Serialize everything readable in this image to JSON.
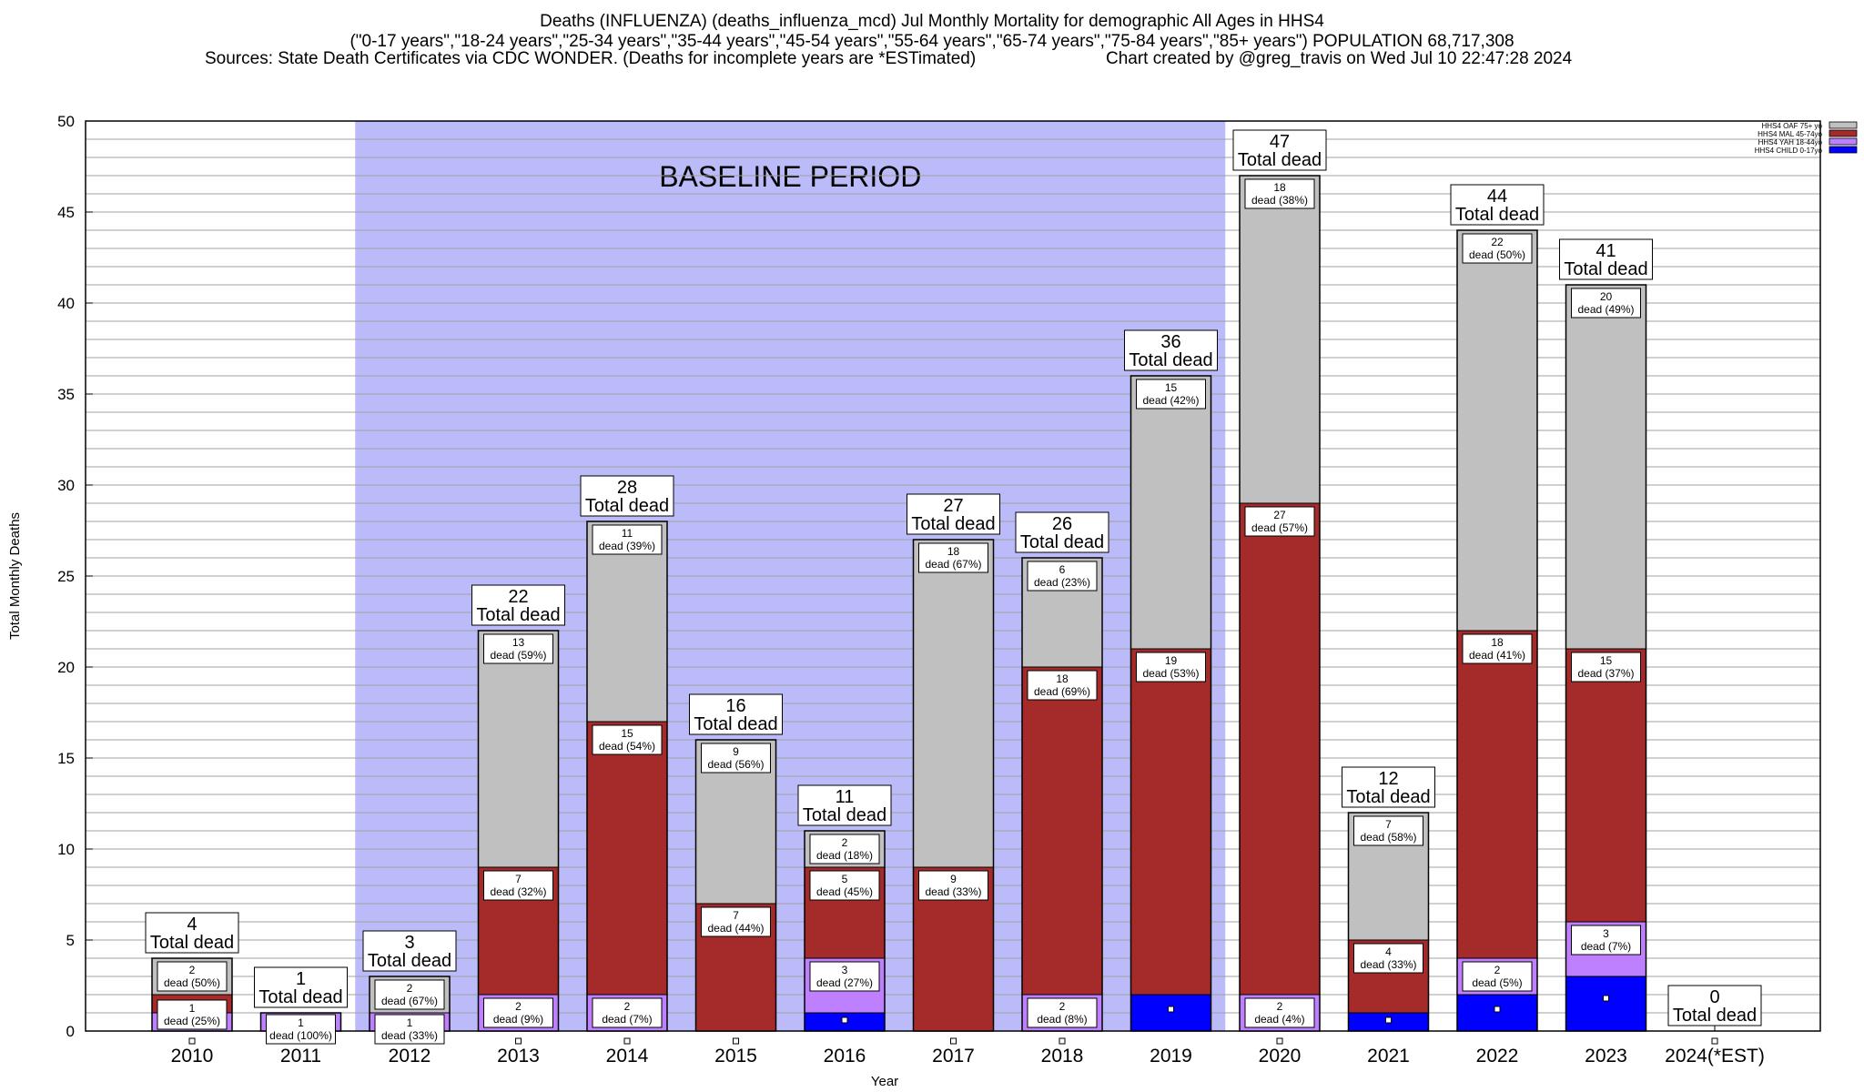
{
  "header": {
    "title": "Deaths (INFLUENZA) (deaths_influenza_mcd) Jul Monthly Mortality for demographic All Ages in HHS4",
    "groups_line": "(\"0-17 years\",\"18-24 years\",\"25-34 years\",\"35-44 years\",\"45-54 years\",\"55-64 years\",\"65-74 years\",\"75-84 years\",\"85+ years\") POPULATION 68,717,308",
    "sources": "Sources: State Death Certificates via CDC WONDER. (Deaths for incomplete years are *ESTimated)",
    "credit": "Chart created by @greg_travis on Wed Jul 10 22:47:28 2024"
  },
  "chart_data": {
    "type": "bar",
    "stacked": true,
    "xlabel": "Year",
    "ylabel": "Total Monthly Deaths",
    "ylim": [
      0,
      50
    ],
    "y_ticks": [
      0,
      5,
      10,
      15,
      20,
      25,
      30,
      35,
      40,
      45,
      50
    ],
    "grid": true,
    "legend_position": "top-right",
    "baseline_label": "BASELINE PERIOD",
    "baseline_categories": [
      "2012",
      "2019"
    ],
    "total_label_word": "Total dead",
    "segment_label_word": "dead",
    "categories": [
      "2010",
      "2011",
      "2012",
      "2013",
      "2014",
      "2015",
      "2016",
      "2017",
      "2018",
      "2019",
      "2020",
      "2021",
      "2022",
      "2023",
      "2024(*EST)"
    ],
    "series": [
      {
        "name": "HHS4 CHILD 0-17yo",
        "color": "#0000ff",
        "values": [
          0,
          0,
          0,
          0,
          0,
          0,
          1,
          0,
          0,
          2,
          0,
          1,
          2,
          3,
          0
        ]
      },
      {
        "name": "HHS4 YAH 18-44yo",
        "color": "#bf80ff",
        "values": [
          1,
          1,
          1,
          2,
          2,
          0,
          3,
          0,
          2,
          0,
          2,
          0,
          2,
          3,
          0
        ]
      },
      {
        "name": "HHS4 MAL 45-74yo",
        "color": "#a52a2a",
        "values": [
          1,
          0,
          0,
          7,
          15,
          7,
          5,
          9,
          18,
          19,
          27,
          4,
          18,
          15,
          0
        ]
      },
      {
        "name": "HHS4 OAF 75+ yo",
        "color": "#c0c0c0",
        "values": [
          2,
          0,
          2,
          13,
          11,
          9,
          2,
          18,
          6,
          15,
          18,
          7,
          22,
          20,
          0
        ]
      }
    ],
    "totals": [
      4,
      1,
      3,
      22,
      28,
      16,
      11,
      27,
      26,
      36,
      47,
      12,
      44,
      41,
      0
    ],
    "segment_labels": [
      [
        [
          1,
          "25%"
        ],
        [
          1,
          "25%"
        ],
        [
          2,
          "50%"
        ]
      ],
      [
        [
          1,
          "100%"
        ]
      ],
      [
        [
          1,
          "33%"
        ],
        [
          2,
          "67%"
        ]
      ],
      [
        [
          2,
          "9%"
        ],
        [
          7,
          "32%"
        ],
        [
          13,
          "59%"
        ]
      ],
      [
        [
          2,
          "7%"
        ],
        [
          15,
          "54%"
        ],
        [
          11,
          "39%"
        ]
      ],
      [
        [
          7,
          "44%"
        ],
        [
          9,
          "56%"
        ]
      ],
      [
        [
          3,
          "27%"
        ],
        [
          5,
          "45%"
        ],
        [
          2,
          "18%"
        ]
      ],
      [
        [
          9,
          "33%"
        ],
        [
          18,
          "67%"
        ]
      ],
      [
        [
          2,
          "8%"
        ],
        [
          18,
          "69%"
        ],
        [
          6,
          "23%"
        ]
      ],
      [
        [
          19,
          "53%"
        ],
        [
          15,
          "42%"
        ]
      ],
      [
        [
          2,
          "4%"
        ],
        [
          27,
          "57%"
        ],
        [
          18,
          "38%"
        ]
      ],
      [
        [
          4,
          "33%"
        ],
        [
          7,
          "58%"
        ]
      ],
      [
        [
          2,
          "5%"
        ],
        [
          18,
          "41%"
        ],
        [
          22,
          "50%"
        ]
      ],
      [
        [
          3,
          "7%"
        ],
        [
          15,
          "37%"
        ],
        [
          20,
          "49%"
        ]
      ],
      []
    ],
    "overlaps": [
      "(25%)"
    ]
  }
}
